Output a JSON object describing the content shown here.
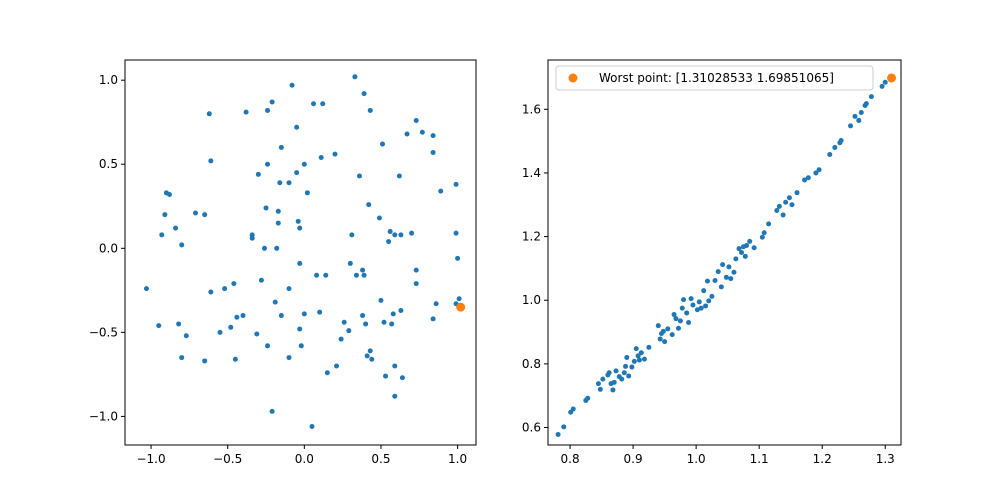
{
  "chart_data": [
    {
      "type": "scatter",
      "xlim": [
        -1.17,
        1.12
      ],
      "ylim": [
        -1.17,
        1.12
      ],
      "x_ticks": [
        -1.0,
        -0.5,
        0.0,
        0.5,
        1.0
      ],
      "x_tick_labels": [
        "−1.0",
        "−0.5",
        "0.0",
        "0.5",
        "1.0"
      ],
      "y_ticks": [
        -1.0,
        -0.5,
        0.0,
        0.5,
        1.0
      ],
      "y_tick_labels": [
        "−1.0",
        "−0.5",
        "0.0",
        "0.5",
        "1.0"
      ],
      "grid": false,
      "series": [
        {
          "color": "#1f77b4",
          "marker": "small-circle",
          "points": [
            [
              -1.03,
              -0.24
            ],
            [
              -0.95,
              -0.46
            ],
            [
              -0.93,
              0.08
            ],
            [
              -0.91,
              0.2
            ],
            [
              -0.9,
              0.33
            ],
            [
              -0.88,
              0.32
            ],
            [
              -0.84,
              0.12
            ],
            [
              -0.82,
              -0.45
            ],
            [
              -0.8,
              0.02
            ],
            [
              -0.8,
              -0.65
            ],
            [
              -0.77,
              -0.52
            ],
            [
              -0.71,
              0.21
            ],
            [
              -0.65,
              0.2
            ],
            [
              -0.65,
              -0.67
            ],
            [
              -0.62,
              0.8
            ],
            [
              -0.61,
              0.52
            ],
            [
              -0.61,
              -0.26
            ],
            [
              -0.55,
              -0.5
            ],
            [
              -0.52,
              -0.24
            ],
            [
              -0.48,
              -0.47
            ],
            [
              -0.46,
              -0.21
            ],
            [
              -0.45,
              -0.66
            ],
            [
              -0.44,
              -0.41
            ],
            [
              -0.4,
              -0.4
            ],
            [
              -0.38,
              0.81
            ],
            [
              -0.34,
              0.06
            ],
            [
              -0.34,
              0.08
            ],
            [
              -0.31,
              -0.51
            ],
            [
              -0.3,
              0.44
            ],
            [
              -0.28,
              -0.19
            ],
            [
              -0.26,
              0.0
            ],
            [
              -0.25,
              0.24
            ],
            [
              -0.24,
              0.5
            ],
            [
              -0.24,
              0.82
            ],
            [
              -0.24,
              -0.58
            ],
            [
              -0.21,
              0.87
            ],
            [
              -0.21,
              -0.97
            ],
            [
              -0.19,
              -0.32
            ],
            [
              -0.18,
              0.0
            ],
            [
              -0.17,
              0.15
            ],
            [
              -0.17,
              0.22
            ],
            [
              -0.16,
              0.39
            ],
            [
              -0.15,
              0.6
            ],
            [
              -0.15,
              -0.4
            ],
            [
              -0.1,
              0.39
            ],
            [
              -0.1,
              -0.24
            ],
            [
              -0.1,
              -0.65
            ],
            [
              -0.08,
              0.97
            ],
            [
              -0.05,
              0.72
            ],
            [
              -0.05,
              0.45
            ],
            [
              -0.04,
              0.16
            ],
            [
              -0.03,
              0.12
            ],
            [
              -0.03,
              -0.09
            ],
            [
              -0.03,
              -0.48
            ],
            [
              -0.02,
              -0.58
            ],
            [
              0.0,
              0.5
            ],
            [
              0.0,
              -0.39
            ],
            [
              0.02,
              0.33
            ],
            [
              0.05,
              -1.06
            ],
            [
              0.06,
              0.86
            ],
            [
              0.08,
              -0.16
            ],
            [
              0.1,
              -0.38
            ],
            [
              0.11,
              0.54
            ],
            [
              0.12,
              0.86
            ],
            [
              0.14,
              -0.16
            ],
            [
              0.15,
              -0.74
            ],
            [
              0.2,
              0.56
            ],
            [
              0.21,
              -0.7
            ],
            [
              0.24,
              -0.54
            ],
            [
              0.26,
              -0.44
            ],
            [
              0.29,
              -0.49
            ],
            [
              0.3,
              -0.09
            ],
            [
              0.31,
              0.08
            ],
            [
              0.33,
              1.02
            ],
            [
              0.34,
              -0.16
            ],
            [
              0.36,
              0.43
            ],
            [
              0.38,
              -0.13
            ],
            [
              0.38,
              -0.4
            ],
            [
              0.39,
              0.92
            ],
            [
              0.39,
              -0.16
            ],
            [
              0.4,
              -0.45
            ],
            [
              0.41,
              -0.64
            ],
            [
              0.42,
              0.26
            ],
            [
              0.43,
              0.82
            ],
            [
              0.43,
              -0.61
            ],
            [
              0.44,
              -0.66
            ],
            [
              0.49,
              0.18
            ],
            [
              0.5,
              -0.31
            ],
            [
              0.51,
              0.62
            ],
            [
              0.52,
              -0.44
            ],
            [
              0.53,
              -0.76
            ],
            [
              0.55,
              0.04
            ],
            [
              0.56,
              0.1
            ],
            [
              0.57,
              -0.45
            ],
            [
              0.58,
              -0.39
            ],
            [
              0.59,
              0.08
            ],
            [
              0.59,
              -0.7
            ],
            [
              0.59,
              -0.88
            ],
            [
              0.62,
              0.43
            ],
            [
              0.63,
              0.08
            ],
            [
              0.63,
              -0.37
            ],
            [
              0.64,
              -0.77
            ],
            [
              0.67,
              0.68
            ],
            [
              0.7,
              0.09
            ],
            [
              0.73,
              0.76
            ],
            [
              0.73,
              -0.13
            ],
            [
              0.73,
              -0.21
            ],
            [
              0.77,
              0.69
            ],
            [
              0.84,
              0.67
            ],
            [
              0.84,
              0.57
            ],
            [
              0.84,
              -0.42
            ],
            [
              0.86,
              -0.33
            ],
            [
              0.89,
              0.34
            ],
            [
              0.99,
              0.38
            ],
            [
              0.99,
              0.09
            ],
            [
              0.99,
              -0.33
            ],
            [
              1.0,
              -0.06
            ],
            [
              1.01,
              -0.3
            ]
          ]
        },
        {
          "color": "#ff7f0e",
          "marker": "circle",
          "points": [
            [
              1.02,
              -0.35
            ]
          ]
        }
      ]
    },
    {
      "type": "scatter",
      "xlim": [
        0.765,
        1.325
      ],
      "ylim": [
        0.545,
        1.755
      ],
      "x_ticks": [
        0.8,
        0.9,
        1.0,
        1.1,
        1.2,
        1.3
      ],
      "x_tick_labels": [
        "0.8",
        "0.9",
        "1.0",
        "1.1",
        "1.2",
        "1.3"
      ],
      "y_ticks": [
        0.6,
        0.8,
        1.0,
        1.2,
        1.4,
        1.6
      ],
      "y_tick_labels": [
        "0.6",
        "0.8",
        "1.0",
        "1.2",
        "1.4",
        "1.6"
      ],
      "grid": false,
      "legend": {
        "placement": "top-right",
        "entries": [
          {
            "label": "Worst point: [1.31028533 1.69851065]",
            "color": "#ff7f0e"
          }
        ]
      },
      "series": [
        {
          "color": "#1f77b4",
          "marker": "small-circle",
          "points": [
            [
              0.781,
              0.578
            ],
            [
              0.79,
              0.602
            ],
            [
              0.801,
              0.648
            ],
            [
              0.805,
              0.658
            ],
            [
              0.825,
              0.685
            ],
            [
              0.828,
              0.692
            ],
            [
              0.845,
              0.738
            ],
            [
              0.848,
              0.72
            ],
            [
              0.852,
              0.752
            ],
            [
              0.86,
              0.765
            ],
            [
              0.862,
              0.772
            ],
            [
              0.865,
              0.738
            ],
            [
              0.868,
              0.718
            ],
            [
              0.87,
              0.742
            ],
            [
              0.873,
              0.778
            ],
            [
              0.878,
              0.76
            ],
            [
              0.882,
              0.752
            ],
            [
              0.886,
              0.772
            ],
            [
              0.888,
              0.792
            ],
            [
              0.89,
              0.82
            ],
            [
              0.893,
              0.762
            ],
            [
              0.898,
              0.79
            ],
            [
              0.902,
              0.808
            ],
            [
              0.905,
              0.848
            ],
            [
              0.908,
              0.825
            ],
            [
              0.91,
              0.812
            ],
            [
              0.913,
              0.835
            ],
            [
              0.918,
              0.815
            ],
            [
              0.925,
              0.852
            ],
            [
              0.94,
              0.92
            ],
            [
              0.943,
              0.878
            ],
            [
              0.945,
              0.895
            ],
            [
              0.948,
              0.902
            ],
            [
              0.95,
              0.87
            ],
            [
              0.955,
              0.91
            ],
            [
              0.962,
              0.892
            ],
            [
              0.965,
              0.955
            ],
            [
              0.968,
              0.942
            ],
            [
              0.972,
              0.912
            ],
            [
              0.975,
              0.935
            ],
            [
              0.978,
              0.975
            ],
            [
              0.98,
              1.002
            ],
            [
              0.985,
              0.96
            ],
            [
              0.988,
              0.93
            ],
            [
              0.992,
              1.005
            ],
            [
              0.995,
              0.985
            ],
            [
              1.002,
              0.97
            ],
            [
              1.005,
              0.995
            ],
            [
              1.008,
              0.975
            ],
            [
              1.012,
              1.03
            ],
            [
              1.015,
              0.982
            ],
            [
              1.018,
              1.06
            ],
            [
              1.02,
              0.998
            ],
            [
              1.025,
              1.012
            ],
            [
              1.03,
              1.062
            ],
            [
              1.035,
              1.09
            ],
            [
              1.04,
              1.042
            ],
            [
              1.042,
              1.112
            ],
            [
              1.048,
              1.072
            ],
            [
              1.052,
              1.105
            ],
            [
              1.055,
              1.068
            ],
            [
              1.06,
              1.088
            ],
            [
              1.063,
              1.13
            ],
            [
              1.068,
              1.162
            ],
            [
              1.072,
              1.15
            ],
            [
              1.075,
              1.168
            ],
            [
              1.078,
              1.138
            ],
            [
              1.08,
              1.172
            ],
            [
              1.085,
              1.185
            ],
            [
              1.092,
              1.165
            ],
            [
              1.105,
              1.198
            ],
            [
              1.108,
              1.212
            ],
            [
              1.115,
              1.24
            ],
            [
              1.128,
              1.282
            ],
            [
              1.132,
              1.295
            ],
            [
              1.138,
              1.268
            ],
            [
              1.142,
              1.308
            ],
            [
              1.148,
              1.322
            ],
            [
              1.152,
              1.3
            ],
            [
              1.16,
              1.338
            ],
            [
              1.172,
              1.378
            ],
            [
              1.178,
              1.385
            ],
            [
              1.19,
              1.4
            ],
            [
              1.195,
              1.41
            ],
            [
              1.212,
              1.458
            ],
            [
              1.22,
              1.48
            ],
            [
              1.228,
              1.495
            ],
            [
              1.23,
              1.502
            ],
            [
              1.245,
              1.548
            ],
            [
              1.252,
              1.578
            ],
            [
              1.258,
              1.565
            ],
            [
              1.262,
              1.59
            ],
            [
              1.268,
              1.612
            ],
            [
              1.27,
              1.618
            ],
            [
              1.278,
              1.64
            ],
            [
              1.295,
              1.672
            ],
            [
              1.3,
              1.685
            ]
          ]
        },
        {
          "color": "#ff7f0e",
          "marker": "circle",
          "points": [
            [
              1.31,
              1.6985
            ]
          ]
        }
      ]
    }
  ]
}
